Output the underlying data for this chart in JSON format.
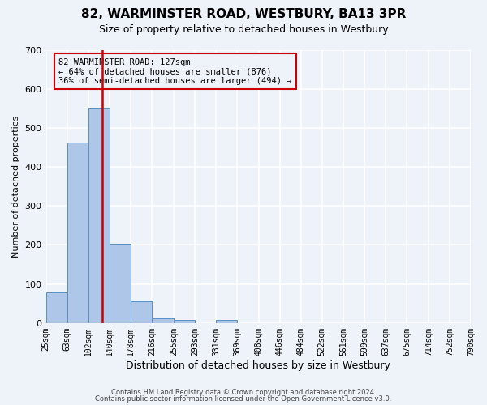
{
  "title1": "82, WARMINSTER ROAD, WESTBURY, BA13 3PR",
  "title2": "Size of property relative to detached houses in Westbury",
  "xlabel": "Distribution of detached houses by size in Westbury",
  "ylabel": "Number of detached properties",
  "footer1": "Contains HM Land Registry data © Crown copyright and database right 2024.",
  "footer2": "Contains public sector information licensed under the Open Government Licence v3.0.",
  "annotation_line1": "82 WARMINSTER ROAD: 127sqm",
  "annotation_line2": "← 64% of detached houses are smaller (876)",
  "annotation_line3": "36% of semi-detached houses are larger (494) →",
  "bin_edges": [
    25,
    63,
    102,
    140,
    178,
    216,
    255,
    293,
    331,
    369,
    408,
    446,
    484,
    522,
    561,
    599,
    637,
    675,
    714,
    752,
    790
  ],
  "bar_heights": [
    78,
    462,
    551,
    203,
    55,
    13,
    7,
    0,
    8,
    0,
    0,
    0,
    0,
    0,
    0,
    0,
    0,
    0,
    0,
    0
  ],
  "bar_color": "#aec6e8",
  "bar_edge_color": "#5a8fc0",
  "vline_color": "#cc0000",
  "vline_x": 127,
  "annotation_box_color": "#cc0000",
  "background_color": "#eef2f9",
  "grid_color": "#ffffff",
  "ylim": [
    0,
    700
  ],
  "yticks": [
    0,
    100,
    200,
    300,
    400,
    500,
    600,
    700
  ],
  "title1_fontsize": 11,
  "title2_fontsize": 9,
  "ylabel_fontsize": 8,
  "xlabel_fontsize": 9,
  "footer_fontsize": 6,
  "tick_fontsize": 7
}
